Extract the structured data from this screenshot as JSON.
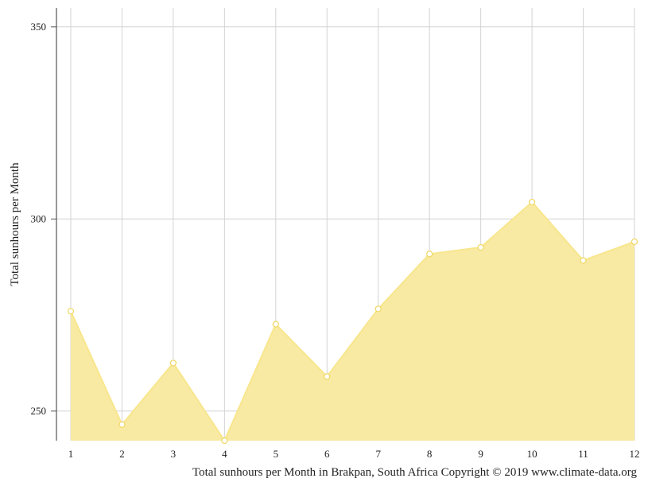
{
  "chart_data": {
    "type": "area",
    "title": "",
    "xlabel": "",
    "ylabel": "Total sunhours per Month",
    "caption": "Total sunhours per Month in Brakpan, South Africa Copyright © 2019 www.climate-data.org",
    "x": [
      "1",
      "2",
      "3",
      "4",
      "5",
      "6",
      "7",
      "8",
      "9",
      "10",
      "11",
      "12"
    ],
    "series": [
      {
        "values": [
          276,
          246.5,
          262.5,
          242.3,
          272.6,
          259,
          276.6,
          290.9,
          292.6,
          304.4,
          289.2,
          294.1
        ]
      }
    ],
    "ylim": [
      242.3,
      355
    ],
    "yticks": [
      250,
      300,
      350
    ],
    "grid": true,
    "legend": "none",
    "colors": {
      "fill": "#f8eaa3",
      "line": "#f8e68c",
      "marker_stroke": "#f0d763",
      "marker_fill": "#ffffff",
      "grid": "#d3d3d3",
      "axis": "#555555"
    }
  }
}
